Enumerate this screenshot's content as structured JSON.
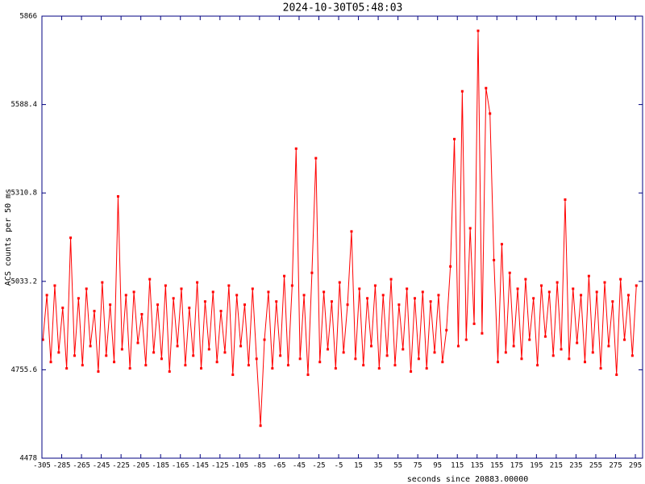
{
  "chart_data": {
    "type": "line",
    "title": "2024-10-30T05:48:03",
    "x_label": "seconds since 20883.00000",
    "y_label": "ACS counts per 50 ms",
    "color": "#ff0000",
    "axis_color": "#000080",
    "xlim": [
      -305,
      302.3
    ],
    "ylim": [
      4478,
      5866
    ],
    "xticks": [
      -305,
      -285,
      -265,
      -245,
      -225,
      -205,
      -185,
      -165,
      -145,
      -125,
      -105,
      -85,
      -65,
      -45,
      -25,
      -5,
      15,
      35,
      55,
      75,
      95,
      115,
      135,
      155,
      175,
      195,
      215,
      235,
      255,
      275,
      295
    ],
    "yticks": [
      4478,
      4755.6,
      5033.2,
      5310.8,
      5588.4,
      5866
    ],
    "x": [
      -304,
      -300,
      -296,
      -292,
      -288,
      -284,
      -280,
      -276,
      -272,
      -268,
      -264,
      -260,
      -256,
      -252,
      -248,
      -244,
      -240,
      -236,
      -232,
      -228,
      -224,
      -220,
      -216,
      -212,
      -208,
      -204,
      -200,
      -196,
      -192,
      -188,
      -184,
      -180,
      -176,
      -172,
      -168,
      -164,
      -160,
      -156,
      -152,
      -148,
      -144,
      -140,
      -136,
      -132,
      -128,
      -124,
      -120,
      -116,
      -112,
      -108,
      -104,
      -100,
      -96,
      -92,
      -88,
      -84,
      -80,
      -76,
      -72,
      -68,
      -64,
      -60,
      -56,
      -52,
      -48,
      -44,
      -40,
      -36,
      -32,
      -28,
      -24,
      -20,
      -16,
      -12,
      -8,
      -4,
      0,
      4,
      8,
      12,
      16,
      20,
      24,
      28,
      32,
      36,
      40,
      44,
      48,
      52,
      56,
      60,
      64,
      68,
      72,
      76,
      80,
      84,
      88,
      92,
      96,
      100,
      104,
      108,
      112,
      116,
      120,
      124,
      128,
      132,
      136,
      140,
      144,
      148,
      152,
      156,
      160,
      164,
      168,
      172,
      176,
      180,
      184,
      188,
      192,
      196,
      200,
      204,
      208,
      212,
      216,
      220,
      224,
      228,
      232,
      236,
      240,
      244,
      248,
      252,
      256,
      260,
      264,
      268,
      272,
      276,
      280,
      284,
      288,
      292,
      296
    ],
    "values": [
      4850,
      4990,
      4780,
      5020,
      4810,
      4950,
      4760,
      5170,
      4800,
      4980,
      4770,
      5010,
      4830,
      4940,
      4750,
      5030,
      4800,
      4960,
      4780,
      5300,
      4820,
      4990,
      4760,
      5000,
      4840,
      4930,
      4770,
      5040,
      4810,
      4960,
      4790,
      5020,
      4750,
      4980,
      4830,
      5010,
      4770,
      4950,
      4800,
      5030,
      4760,
      4970,
      4820,
      5000,
      4780,
      4940,
      4810,
      5020,
      4740,
      4990,
      4830,
      4960,
      4770,
      5010,
      4790,
      4580,
      4850,
      5000,
      4760,
      4970,
      4800,
      5050,
      4770,
      5020,
      5450,
      4790,
      4990,
      4740,
      5060,
      5420,
      4780,
      5000,
      4820,
      4970,
      4760,
      5030,
      4810,
      4960,
      5190,
      4790,
      5010,
      4770,
      4980,
      4830,
      5020,
      4760,
      4990,
      4800,
      5040,
      4770,
      4960,
      4820,
      5010,
      4750,
      4980,
      4790,
      5000,
      4760,
      4970,
      4810,
      4990,
      4780,
      4880,
      5080,
      5480,
      4830,
      5630,
      4850,
      5200,
      4900,
      5820,
      4870,
      5640,
      5560,
      5100,
      4780,
      5150,
      4810,
      5060,
      4830,
      5010,
      4790,
      5040,
      4850,
      4980,
      4770,
      5020,
      4860,
      5000,
      4800,
      5030,
      4820,
      5290,
      4790,
      5010,
      4840,
      4990,
      4780,
      5050,
      4810,
      5000,
      4760,
      5030,
      4830,
      4970,
      4740,
      5040,
      4850,
      4990,
      4800,
      5020
    ]
  }
}
